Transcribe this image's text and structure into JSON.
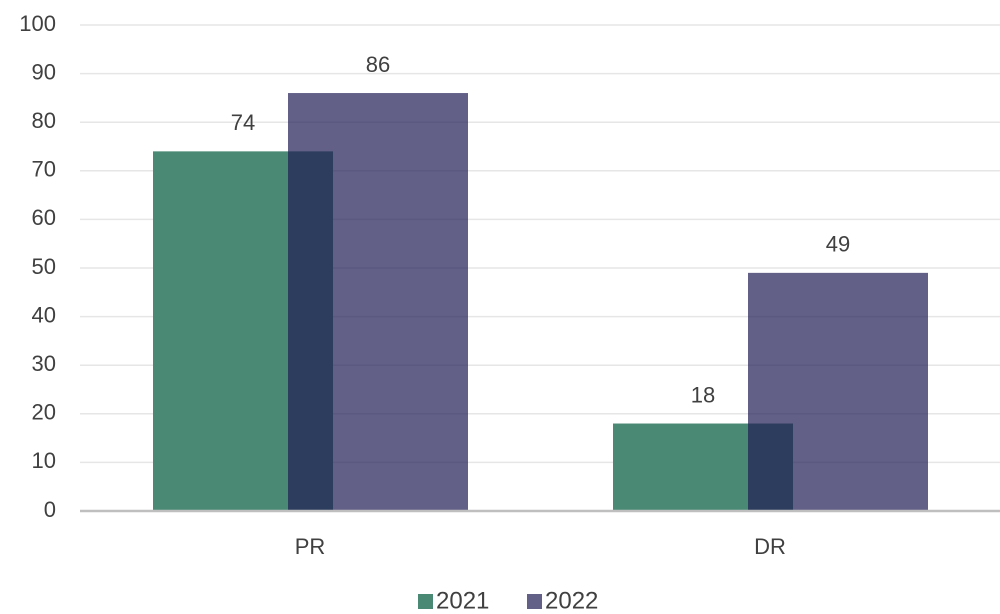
{
  "chart_data": {
    "type": "bar",
    "categories": [
      "PR",
      "DR"
    ],
    "series": [
      {
        "name": "2021",
        "color": "#4a8a74",
        "values": [
          74,
          18
        ]
      },
      {
        "name": "2022",
        "color": "#201c54",
        "values": [
          86,
          49
        ]
      }
    ],
    "ylim": [
      0,
      100
    ],
    "yticks": [
      0,
      10,
      20,
      30,
      40,
      50,
      60,
      70,
      80,
      90,
      100
    ],
    "grid": true,
    "legend": "bottom"
  }
}
